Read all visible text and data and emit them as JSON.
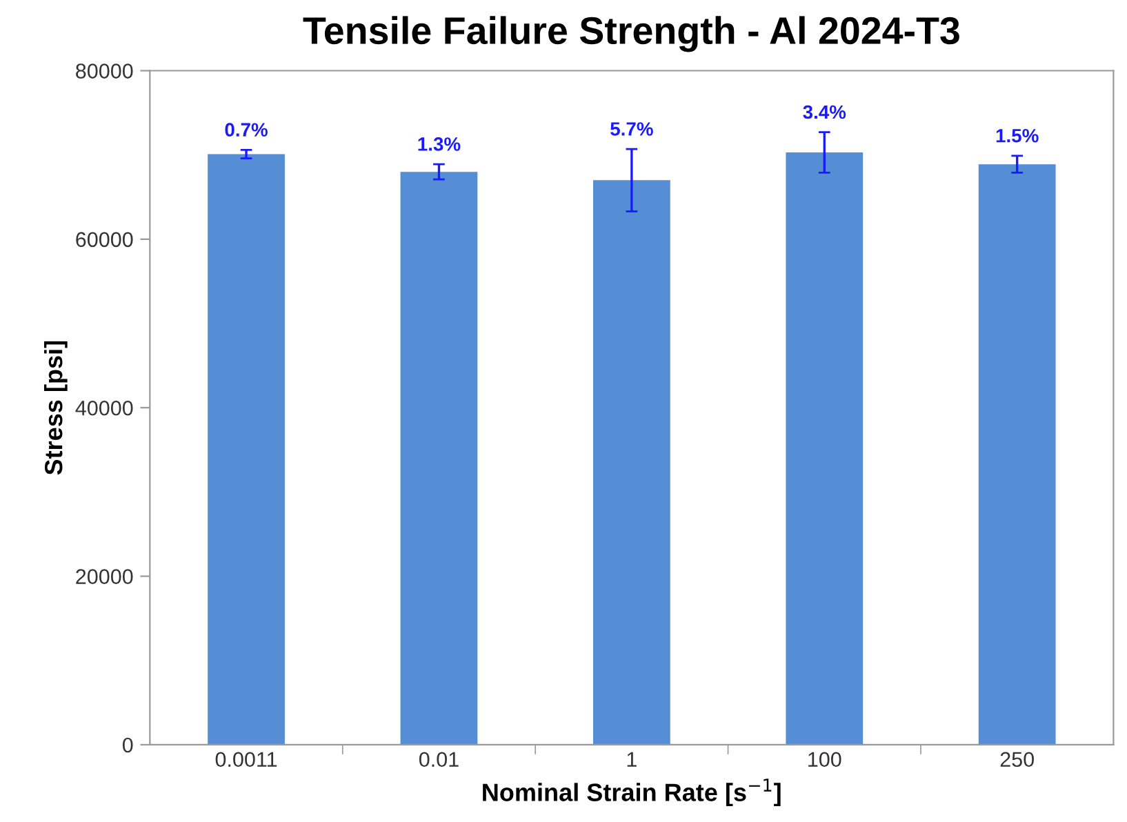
{
  "chart_data": {
    "type": "bar",
    "title": "Tensile Failure Strength - Al 2024-T3",
    "xlabel": "Nominal Strain Rate [s$^{−1}$]",
    "ylabel": "Stress [psi]",
    "categories": [
      "0.0011",
      "0.01",
      "1",
      "100",
      "250"
    ],
    "values": [
      70100,
      68000,
      67000,
      70300,
      68900
    ],
    "errors": [
      500,
      900,
      3700,
      2400,
      1000
    ],
    "annotations": [
      {
        "text": "0.7%",
        "x": "0.0011",
        "y": 70600
      },
      {
        "text": "1.3%",
        "x": "0.01",
        "y": 68900
      },
      {
        "text": "5.7%",
        "x": "1",
        "y": 70700
      },
      {
        "text": "3.4%",
        "x": "100",
        "y": 72700
      },
      {
        "text": "1.5%",
        "x": "250",
        "y": 69900
      }
    ],
    "color": "#558ed5",
    "ylim": [
      0,
      80000
    ],
    "yticks": [
      0,
      20000,
      40000,
      60000,
      80000
    ],
    "grid": false,
    "legend": false
  }
}
